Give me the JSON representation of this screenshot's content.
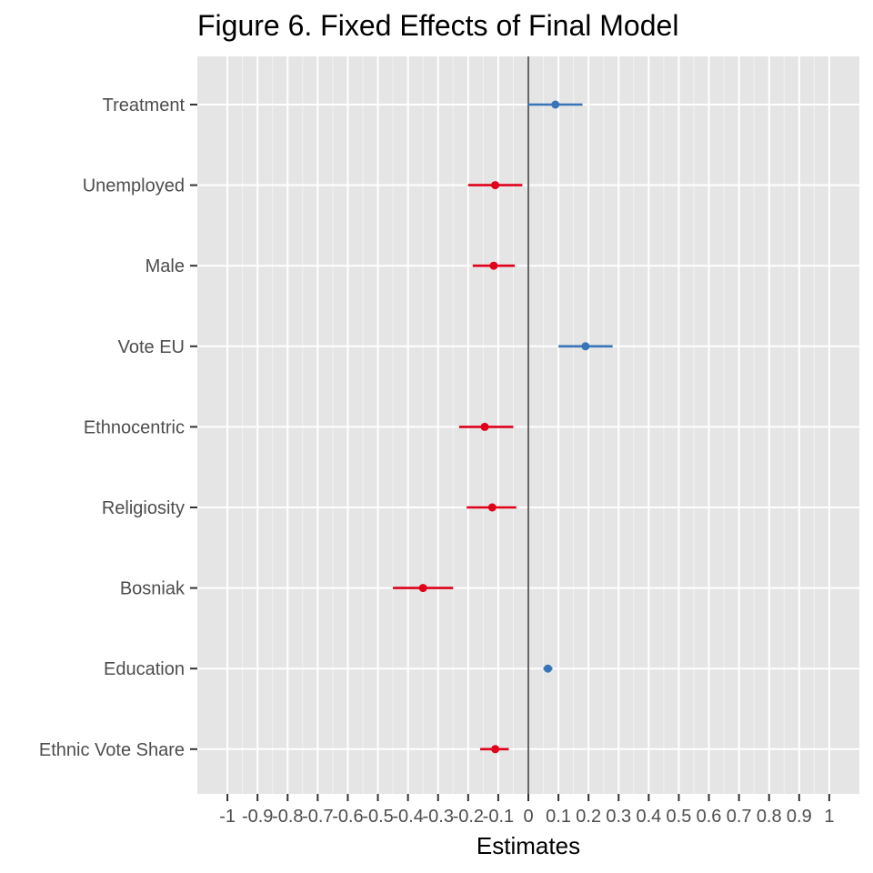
{
  "chart_data": {
    "type": "forest",
    "title": "Figure 6. Fixed Effects of Final Model",
    "xlabel": "Estimates",
    "ylabel": "",
    "xlim": [
      -1.1,
      1.1
    ],
    "x_ticks": [
      -1,
      -0.9,
      -0.8,
      -0.7,
      -0.6,
      -0.5,
      -0.4,
      -0.3,
      -0.2,
      -0.1,
      0,
      0.1,
      0.2,
      0.3,
      0.4,
      0.5,
      0.6,
      0.7,
      0.8,
      0.9,
      1
    ],
    "x_tick_labels": [
      "-1",
      "-0.9",
      "-0.8",
      "-0.7",
      "-0.6",
      "-0.5",
      "-0.4",
      "-0.3",
      "-0.2",
      "-0.1",
      "0",
      "0.1",
      "0.2",
      "0.3",
      "0.4",
      "0.5",
      "0.6",
      "0.7",
      "0.8",
      "0.9",
      "1"
    ],
    "grid": true,
    "reference_line": 0,
    "colors": {
      "positive": "#3875b8",
      "negative": "#e0001a",
      "panel": "#e5e5e5",
      "grid": "#ffffff"
    },
    "terms": [
      {
        "label": "Treatment",
        "estimate": 0.09,
        "lower": 0.0,
        "upper": 0.18
      },
      {
        "label": "Unemployed",
        "estimate": -0.11,
        "lower": -0.2,
        "upper": -0.02
      },
      {
        "label": "Male",
        "estimate": -0.115,
        "lower": -0.185,
        "upper": -0.045
      },
      {
        "label": "Vote EU",
        "estimate": 0.19,
        "lower": 0.1,
        "upper": 0.28
      },
      {
        "label": "Ethnocentric",
        "estimate": -0.145,
        "lower": -0.23,
        "upper": -0.05
      },
      {
        "label": "Religiosity",
        "estimate": -0.12,
        "lower": -0.205,
        "upper": -0.04
      },
      {
        "label": "Bosniak",
        "estimate": -0.35,
        "lower": -0.45,
        "upper": -0.25
      },
      {
        "label": "Education",
        "estimate": 0.065,
        "lower": 0.05,
        "upper": 0.08
      },
      {
        "label": "Ethnic Vote Share",
        "estimate": -0.11,
        "lower": -0.16,
        "upper": -0.065
      }
    ]
  }
}
